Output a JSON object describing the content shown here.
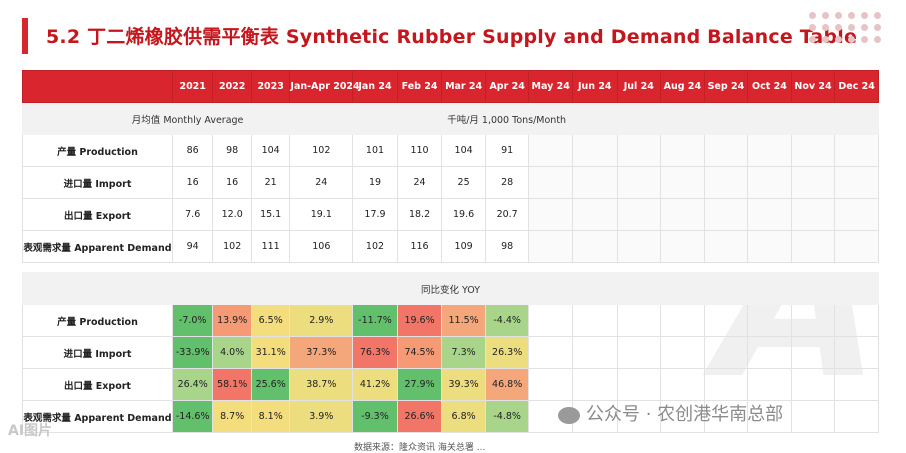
{
  "title": "5.2 丁二烯橡胶供需平衡表 Synthetic Rubber Supply and Demand Balance Table",
  "columns": [
    "2021",
    "2022",
    "2023",
    "Jan-Apr 2024",
    "Jan 24",
    "Feb 24",
    "Mar 24",
    "Apr 24",
    "May 24",
    "Jun 24",
    "Jul 24",
    "Aug 24",
    "Sep 24",
    "Oct 24",
    "Nov 24",
    "Dec 24"
  ],
  "monthly_average_label": "月均值 Monthly Average",
  "unit_label": "千吨/月 1,000 Tons/Month",
  "rows": [
    {
      "label": "产量 Production",
      "values": [
        "86",
        "98",
        "104",
        "102",
        "101",
        "110",
        "104",
        "91"
      ]
    },
    {
      "label": "进口量 Import",
      "values": [
        "16",
        "16",
        "21",
        "24",
        "19",
        "24",
        "25",
        "28"
      ]
    },
    {
      "label": "出口量 Export",
      "values": [
        "7.6",
        "12.0",
        "15.1",
        "19.1",
        "17.9",
        "18.2",
        "19.6",
        "20.7"
      ]
    },
    {
      "label": "表观需求量 Apparent Demand",
      "values": [
        "94",
        "102",
        "111",
        "106",
        "102",
        "116",
        "109",
        "98"
      ]
    }
  ],
  "yoy_label": "同比变化 YOY",
  "yoy_rows": [
    {
      "label": "产量 Production",
      "values": [
        "-7.0%",
        "13.9%",
        "6.5%",
        "2.9%",
        "-11.7%",
        "19.6%",
        "11.5%",
        "-4.4%"
      ]
    },
    {
      "label": "进口量 Import",
      "values": [
        "-33.9%",
        "4.0%",
        "31.1%",
        "37.3%",
        "76.3%",
        "74.5%",
        "7.3%",
        "26.3%"
      ]
    },
    {
      "label": "出口量 Export",
      "values": [
        "26.4%",
        "58.1%",
        "25.6%",
        "38.7%",
        "41.2%",
        "27.9%",
        "39.3%",
        "46.8%"
      ]
    },
    {
      "label": "表观需求量 Apparent Demand",
      "values": [
        "-14.6%",
        "8.7%",
        "8.1%",
        "3.9%",
        "-9.3%",
        "26.6%",
        "6.8%",
        "-4.8%"
      ]
    }
  ],
  "source_text": "数据来源：隆众资讯 海关总署 ...",
  "wechat_label": "公众号 · 农创港华南总部",
  "credit_text": "AI图片",
  "colors": {
    "accent": "#d6262e",
    "title": "#c4161c",
    "dark_green": "#62bf6b",
    "light_green": "#a9d58b",
    "yellow": "#ecde7f",
    "orange": "#f59a74",
    "red": "#f17668"
  }
}
